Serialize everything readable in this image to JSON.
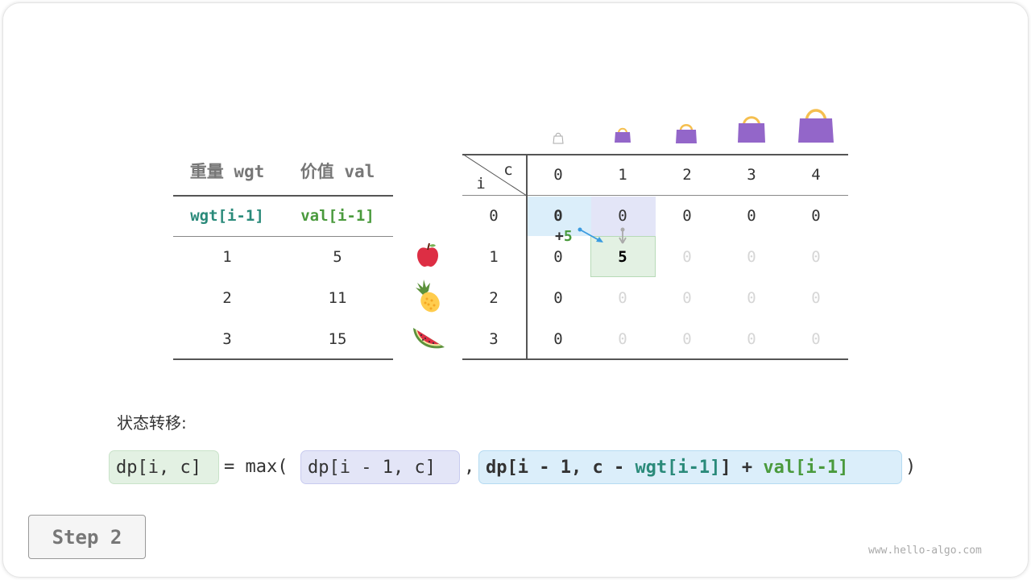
{
  "items_table": {
    "headers": [
      "重量 wgt",
      "价值 val"
    ],
    "subheaders": [
      "wgt[i-1]",
      "val[i-1]"
    ],
    "rows": [
      [
        "1",
        "5"
      ],
      [
        "2",
        "11"
      ],
      [
        "3",
        "15"
      ]
    ],
    "item_icons": [
      "apple-icon",
      "pineapple-icon",
      "watermelon-icon"
    ]
  },
  "dp_table": {
    "corner_col_label": "c",
    "corner_row_label": "i",
    "col_headers": [
      "0",
      "1",
      "2",
      "3",
      "4"
    ],
    "row_headers": [
      "0",
      "1",
      "2",
      "3"
    ],
    "capacity_icons": [
      "empty-bag-icon",
      "bag-icon",
      "bag-icon",
      "bag-icon",
      "bag-icon"
    ],
    "cells": [
      [
        "0",
        "0",
        "0",
        "0",
        "0"
      ],
      [
        "0",
        "5",
        "0",
        "0",
        "0"
      ],
      [
        "0",
        "0",
        "0",
        "0",
        "0"
      ],
      [
        "0",
        "0",
        "0",
        "0",
        "0"
      ]
    ],
    "annotation": {
      "plus": "+",
      "value": "5"
    }
  },
  "formula": {
    "title": "状态转移:",
    "lhs": "dp[i, c]",
    "eq": "= max(",
    "opt1": "dp[i - 1, c]",
    "comma": ",",
    "opt2_prefix": "dp[i - 1, c - ",
    "opt2_wgt": "wgt[i-1]",
    "opt2_mid": "] + ",
    "opt2_val": "val[i-1]",
    "close": ")"
  },
  "step_label": "Step 2",
  "watermark": "www.hello-algo.com",
  "colors": {
    "teal": "#2a8a7a",
    "green": "#4a9a3d",
    "bag": "#9366c9",
    "handle": "#f5bf4f",
    "blue_hl": "#dbeefa",
    "lavender_hl": "#e3e5f7",
    "green_hl": "#e3f1e3"
  }
}
